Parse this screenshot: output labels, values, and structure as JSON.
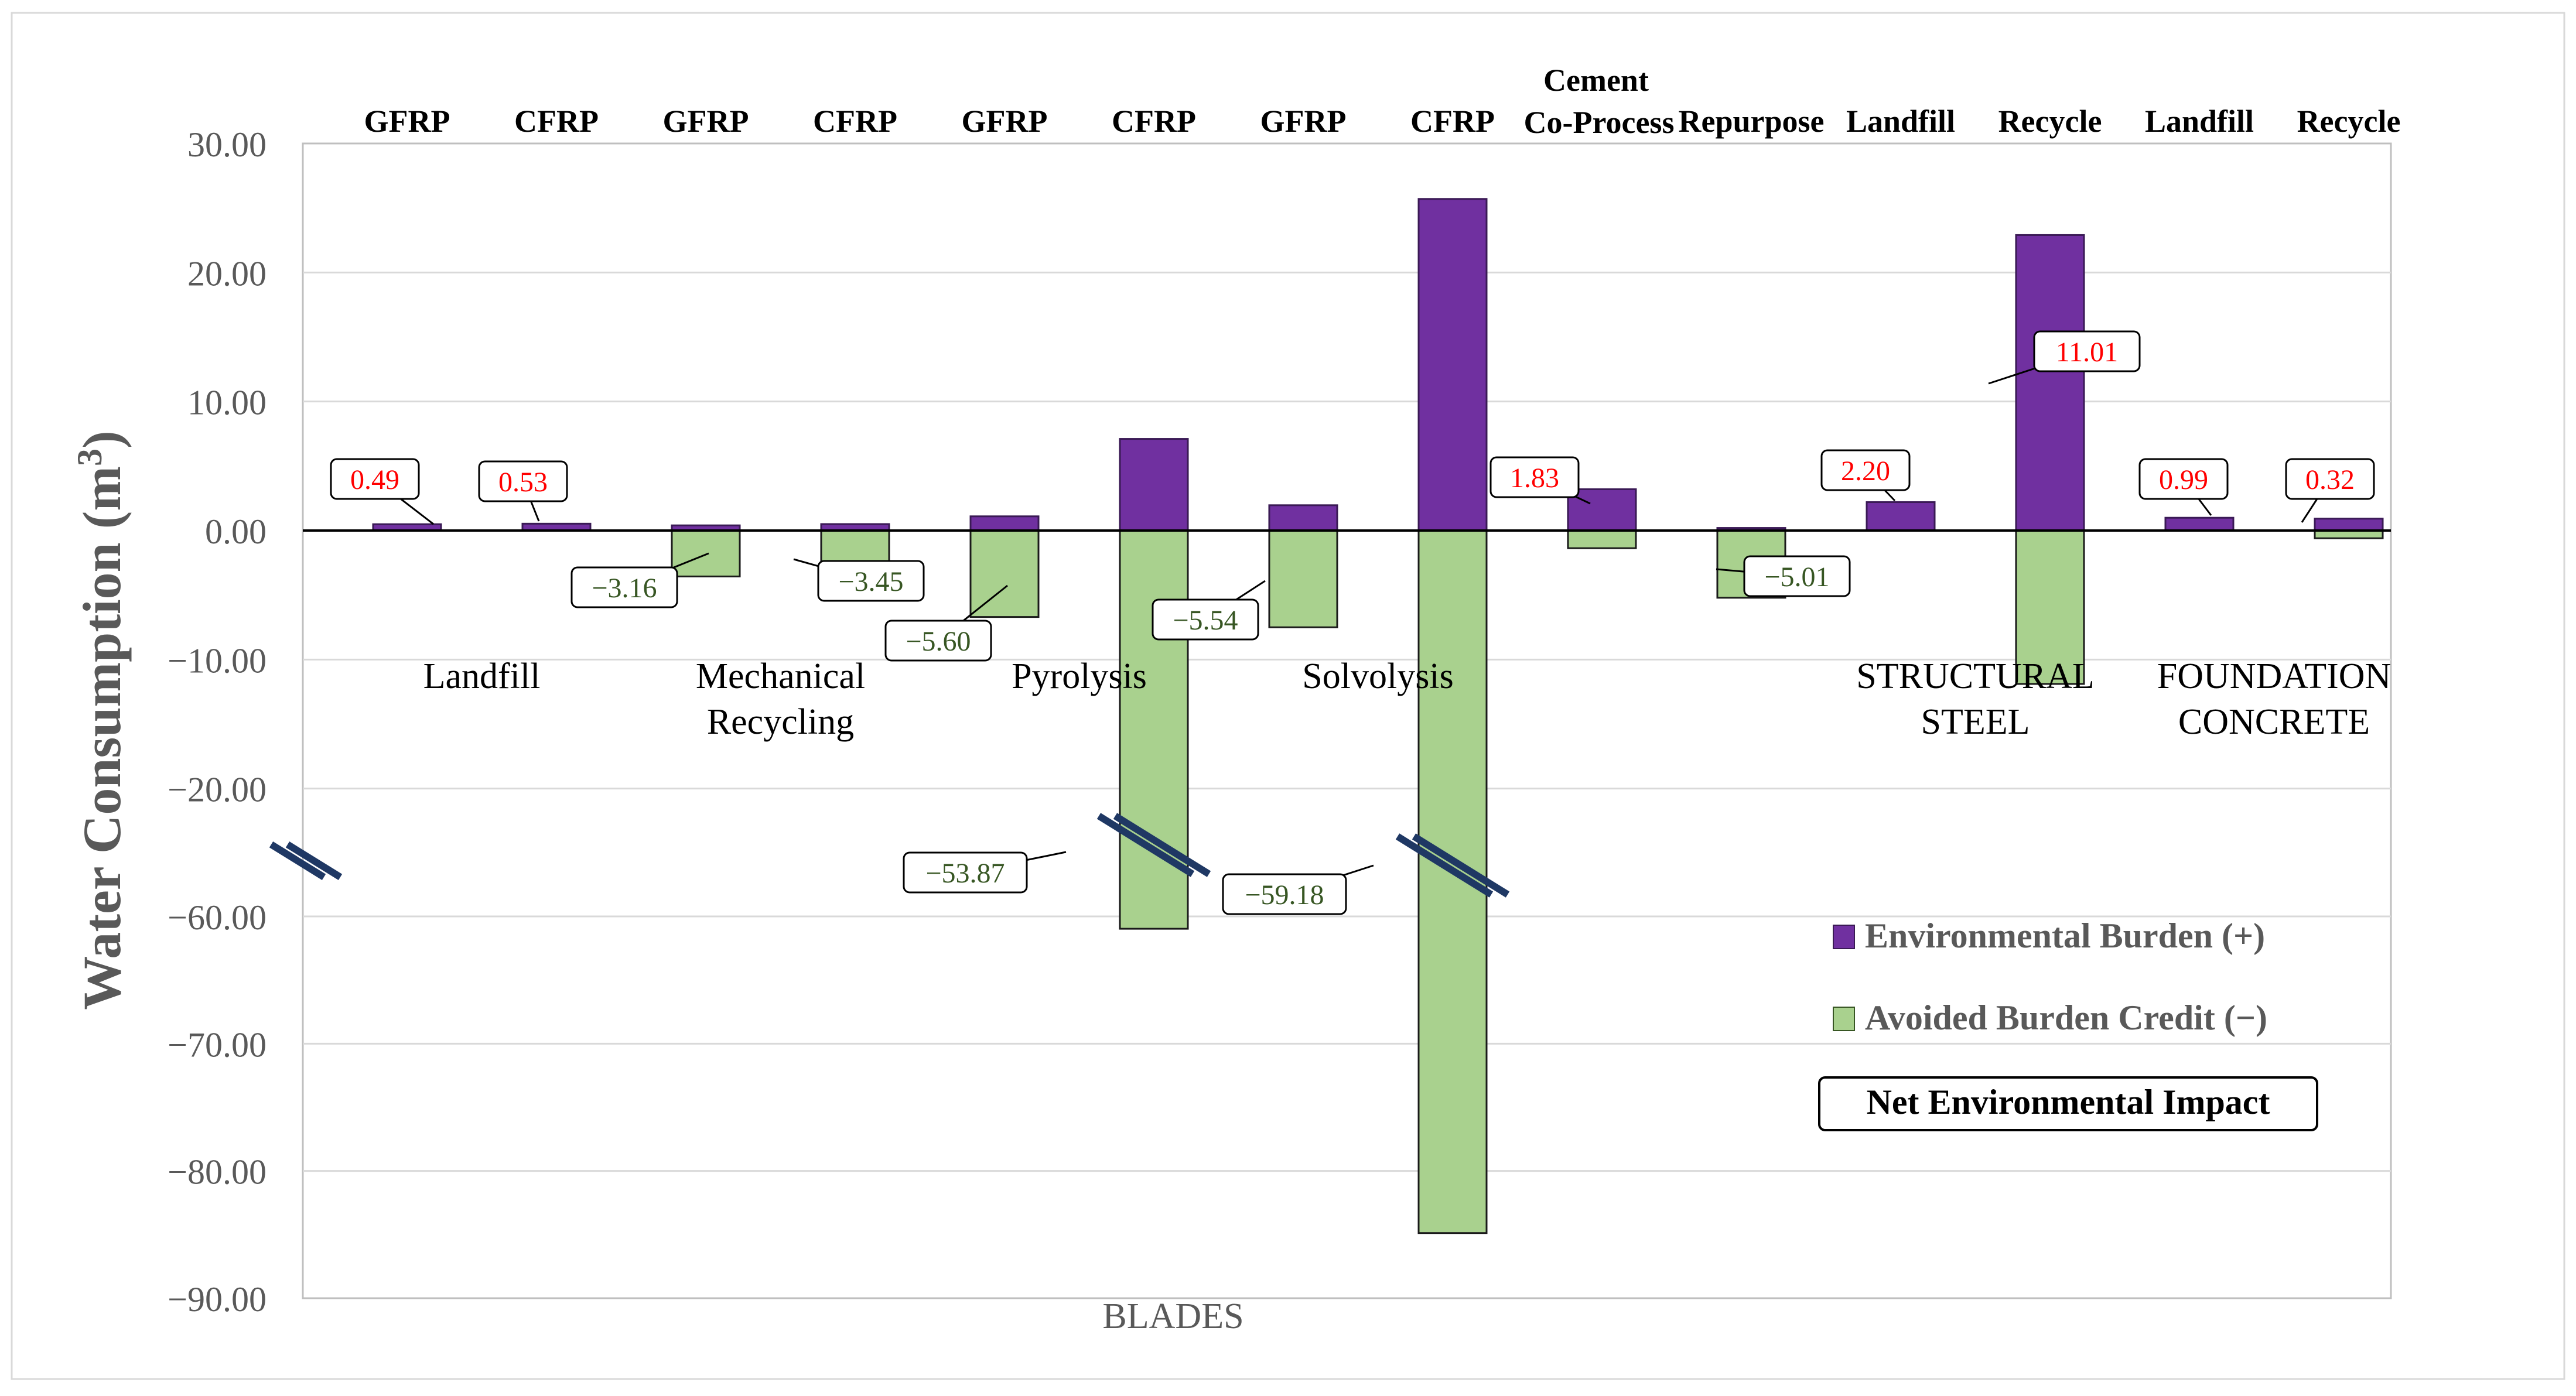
{
  "chart_data": {
    "type": "bar",
    "stacked": true,
    "title": "",
    "xlabel": "BLADES",
    "ylabel": "Water Consumption (m",
    "ylabel_sup": "3",
    "ylabel_close": ")",
    "ylim": [
      -90,
      30
    ],
    "axis_break": {
      "from": -58,
      "to": -22,
      "marker": "//"
    },
    "y_ticks": [
      {
        "value": 30,
        "label": "30.00"
      },
      {
        "value": 20,
        "label": "20.00"
      },
      {
        "value": 10,
        "label": "10.00"
      },
      {
        "value": 0,
        "label": "0.00"
      },
      {
        "value": -10,
        "label": "−10.00"
      },
      {
        "value": -20,
        "label": "−20.00"
      },
      {
        "value": -60,
        "label": "−60.00"
      },
      {
        "value": -70,
        "label": "−70.00"
      },
      {
        "value": -80,
        "label": "−80.00"
      },
      {
        "value": -90,
        "label": "−90.00"
      }
    ],
    "grid": true,
    "legend_position": "bottom-right",
    "series": [
      {
        "name": "Environmental Burden (+)",
        "color": "#7030a0"
      },
      {
        "name": "Avoided Burden Credit (−)",
        "color": "#a9d18e"
      }
    ],
    "legend_extra": "Net Environmental Impact",
    "categories": [
      "GFRP",
      "CFRP",
      "GFRP",
      "CFRP",
      "GFRP",
      "CFRP",
      "GFRP",
      "CFRP",
      "Cement Co-Process",
      "Repurpose",
      "Landfill",
      "Recycle",
      "Landfill",
      "Recycle"
    ],
    "bars": [
      {
        "label": "GFRP",
        "burden": 0.49,
        "credit": 0,
        "net": 0.49,
        "net_text": "0.49"
      },
      {
        "label": "CFRP",
        "burden": 0.53,
        "credit": 0,
        "net": 0.53,
        "net_text": "0.53"
      },
      {
        "label": "GFRP",
        "burden": 0.4,
        "credit": -3.56,
        "net": -3.16,
        "net_text": "−3.16"
      },
      {
        "label": "CFRP",
        "burden": 0.5,
        "credit": -3.95,
        "net": -3.45,
        "net_text": "−3.45"
      },
      {
        "label": "GFRP",
        "burden": 1.1,
        "credit": -6.7,
        "net": -5.6,
        "net_text": "−5.60"
      },
      {
        "label": "CFRP",
        "burden": 7.1,
        "credit": -60.97,
        "net": -53.87,
        "net_text": "−53.87"
      },
      {
        "label": "GFRP",
        "burden": 1.96,
        "credit": -7.5,
        "net": -5.54,
        "net_text": "−5.54"
      },
      {
        "label": "CFRP",
        "burden": 25.7,
        "credit": -84.88,
        "net": -59.18,
        "net_text": "−59.18"
      },
      {
        "label": "Cement Co-Process",
        "burden": 3.2,
        "credit": -1.37,
        "net": 1.83,
        "net_text": "1.83"
      },
      {
        "label": "Repurpose",
        "burden": 0.2,
        "credit": -5.21,
        "net": -5.01,
        "net_text": "−5.01"
      },
      {
        "label": "Landfill",
        "burden": 2.2,
        "credit": 0,
        "net": 2.2,
        "net_text": "2.20"
      },
      {
        "label": "Recycle",
        "burden": 22.9,
        "credit": -11.89,
        "net": 11.01,
        "net_text": "11.01"
      },
      {
        "label": "Landfill",
        "burden": 0.99,
        "credit": 0,
        "net": 0.99,
        "net_text": "0.99"
      },
      {
        "label": "Recycle",
        "burden": 0.92,
        "credit": -0.6,
        "net": 0.32,
        "net_text": "0.32"
      }
    ],
    "group_labels": [
      {
        "lines": [
          "Landfill"
        ]
      },
      {
        "lines": [
          "Mechanical",
          "Recycling"
        ]
      },
      {
        "lines": [
          "Pyrolysis"
        ]
      },
      {
        "lines": [
          "Solvolysis"
        ]
      },
      {
        "lines": [
          "STRUCTURAL",
          "STEEL"
        ]
      },
      {
        "lines": [
          "FOUNDATION",
          "CONCRETE"
        ]
      }
    ],
    "positive_label_color": "#ff0000",
    "negative_label_color": "#375623"
  }
}
